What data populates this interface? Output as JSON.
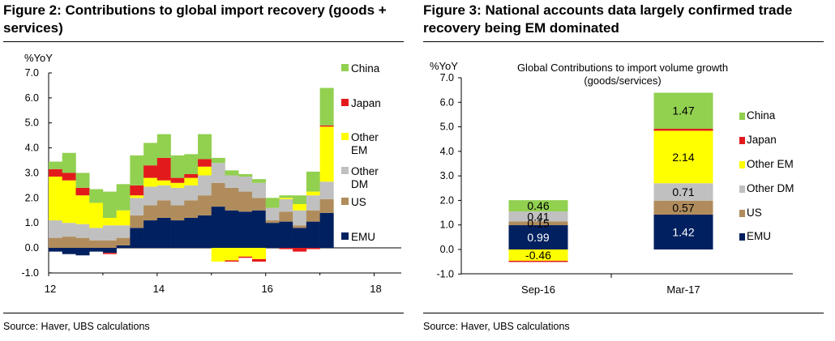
{
  "figures": [
    {
      "title": "Figure 2:  Contributions to global import recovery (goods + services)",
      "source": "Source:  Haver, UBS calculations"
    },
    {
      "title": "Figure 3: National accounts data largely confirmed trade recovery being EM dominated",
      "source": "Source:  Haver, UBS calculations"
    }
  ],
  "colors": {
    "China": "#92d050",
    "Japan": "#e31a1c",
    "Other EM": "#ffff00",
    "Other DM": "#c0c0c0",
    "US": "#b08c5c",
    "EMU": "#002060"
  },
  "chart_data": [
    {
      "type": "bar",
      "stacked": true,
      "title": "",
      "unit_label": "%YoY",
      "ylim": [
        -1.0,
        7.0
      ],
      "y_ticks": [
        "7.0",
        "6.0",
        "5.0",
        "4.0",
        "3.0",
        "2.0",
        "1.0",
        "0.0",
        "-1.0"
      ],
      "x_ticks": [
        "12",
        "14",
        "16",
        "18"
      ],
      "xlim": [
        2012,
        2018.5
      ],
      "grid": false,
      "legend_position": "right",
      "legend_labels": [
        "China",
        "Japan",
        "Other\nEM",
        "Other\nDM",
        "US",
        "EMU"
      ],
      "x": [
        2012.0,
        2012.25,
        2012.5,
        2012.75,
        2013.0,
        2013.25,
        2013.5,
        2013.75,
        2014.0,
        2014.25,
        2014.5,
        2014.75,
        2015.0,
        2015.25,
        2015.5,
        2015.75,
        2016.0,
        2016.25,
        2016.5,
        2016.75,
        2017.0
      ],
      "series": [
        {
          "name": "EMU",
          "values": [
            -0.15,
            -0.25,
            -0.3,
            -0.15,
            -0.2,
            0.1,
            0.8,
            1.1,
            1.2,
            1.1,
            1.2,
            1.3,
            1.65,
            1.5,
            1.45,
            1.5,
            1.0,
            1.05,
            0.8,
            1.05,
            1.4
          ]
        },
        {
          "name": "US",
          "values": [
            0.4,
            0.45,
            0.4,
            0.3,
            0.3,
            0.3,
            0.5,
            0.6,
            0.7,
            0.6,
            0.7,
            0.8,
            0.95,
            0.9,
            0.8,
            0.5,
            0.1,
            0.4,
            0.1,
            0.45,
            0.55
          ]
        },
        {
          "name": "Other DM",
          "values": [
            0.7,
            0.55,
            0.55,
            0.5,
            0.6,
            0.5,
            0.7,
            0.75,
            0.6,
            0.7,
            0.6,
            0.8,
            0.8,
            0.5,
            0.6,
            0.6,
            0.5,
            0.5,
            0.6,
            0.6,
            0.7
          ]
        },
        {
          "name": "Other EM",
          "values": [
            1.75,
            1.7,
            1.15,
            1.0,
            0.3,
            0.6,
            0.1,
            0.35,
            0.2,
            0.2,
            0.3,
            0.35,
            -0.55,
            -0.5,
            -0.35,
            -0.45,
            0.0,
            0.05,
            0.25,
            0.15,
            2.2
          ]
        },
        {
          "name": "Japan",
          "values": [
            0.3,
            0.3,
            0.3,
            0.0,
            -0.05,
            0.0,
            0.4,
            0.5,
            0.9,
            0.2,
            0.15,
            0.3,
            0.0,
            -0.05,
            -0.05,
            -0.1,
            0.0,
            -0.05,
            -0.15,
            -0.05,
            0.05
          ]
        },
        {
          "name": "China",
          "values": [
            0.3,
            0.8,
            0.6,
            0.55,
            1.05,
            1.05,
            1.2,
            0.9,
            0.95,
            0.9,
            0.8,
            1.0,
            0.2,
            0.2,
            0.1,
            0.15,
            0.4,
            0.1,
            0.35,
            0.8,
            1.5
          ]
        }
      ]
    },
    {
      "type": "bar",
      "stacked": true,
      "title": "Global Contributions to import volume growth\n(goods/services)",
      "unit_label": "%YoY",
      "ylim": [
        -1.0,
        7.0
      ],
      "y_ticks": [
        "7.0",
        "6.0",
        "5.0",
        "4.0",
        "3.0",
        "2.0",
        "1.0",
        "0.0",
        "-1.0"
      ],
      "categories": [
        "Sep-16",
        "Mar-17"
      ],
      "grid": false,
      "legend_position": "right",
      "legend_labels": [
        "China",
        "Japan",
        "Other EM",
        "Other DM",
        "US",
        "EMU"
      ],
      "series": [
        {
          "name": "EMU",
          "values": [
            0.99,
            1.42
          ],
          "labels": [
            "0.99",
            "1.42"
          ]
        },
        {
          "name": "US",
          "values": [
            0.15,
            0.57
          ],
          "labels": [
            "0.15",
            "0.57"
          ]
        },
        {
          "name": "Other DM",
          "values": [
            0.41,
            0.71
          ],
          "labels": [
            "0.41",
            "0.71"
          ]
        },
        {
          "name": "Other EM",
          "values": [
            -0.46,
            2.14
          ],
          "labels": [
            "-0.46",
            "2.14"
          ]
        },
        {
          "name": "Japan",
          "values": [
            -0.05,
            0.08
          ],
          "labels": [
            "",
            ""
          ]
        },
        {
          "name": "China",
          "values": [
            0.46,
            1.47
          ],
          "labels": [
            "0.46",
            "1.47"
          ]
        }
      ]
    }
  ]
}
